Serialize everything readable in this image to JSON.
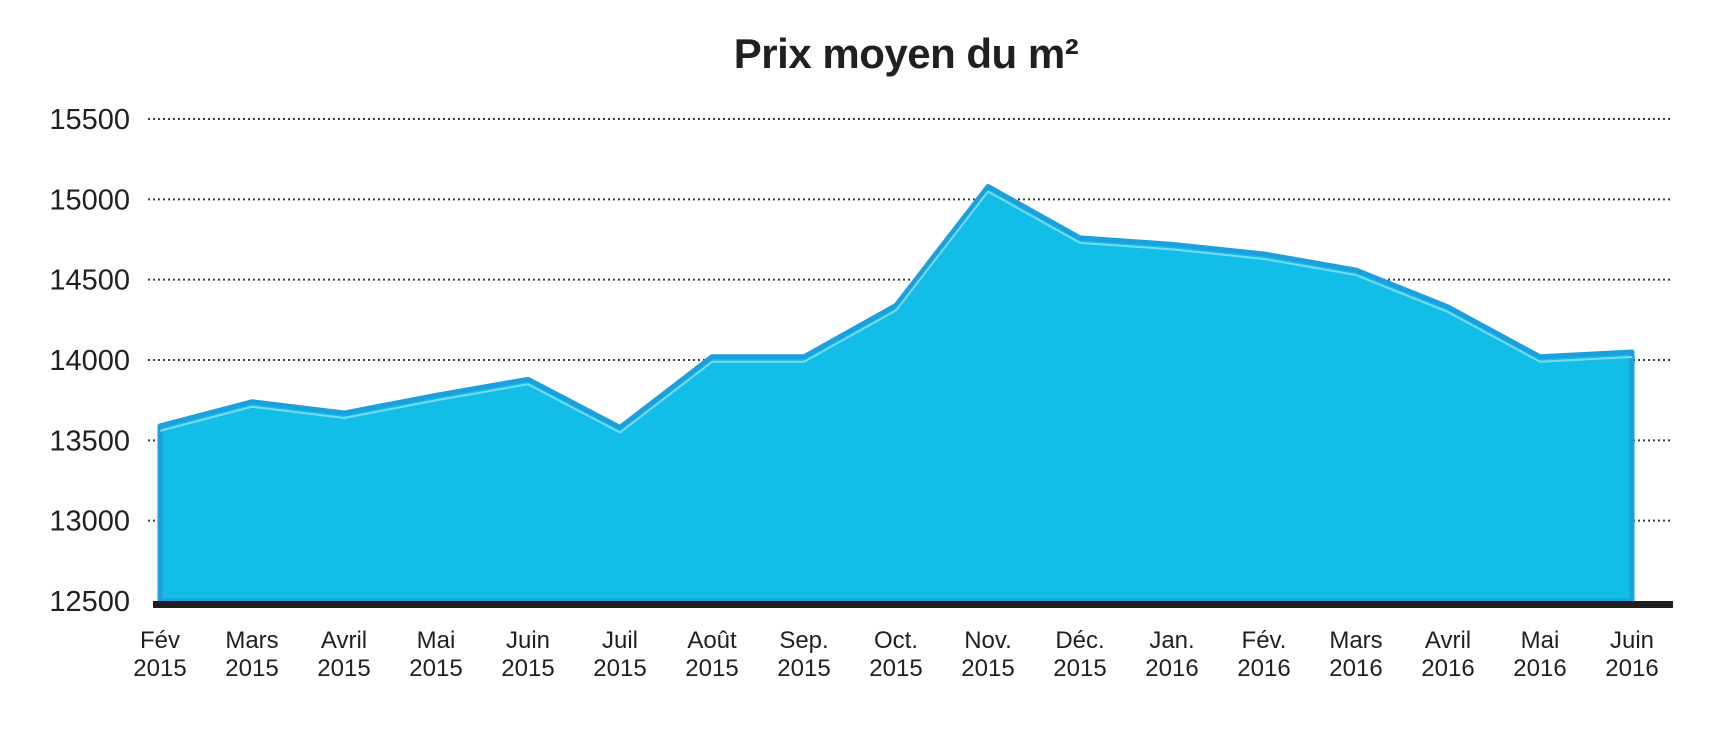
{
  "chart_data": {
    "type": "area",
    "title": "Prix moyen du m²",
    "xlabel": "",
    "ylabel": "",
    "categories": [
      {
        "month": "Fév",
        "year": "2015"
      },
      {
        "month": "Mars",
        "year": "2015"
      },
      {
        "month": "Avril",
        "year": "2015"
      },
      {
        "month": "Mai",
        "year": "2015"
      },
      {
        "month": "Juin",
        "year": "2015"
      },
      {
        "month": "Juil",
        "year": "2015"
      },
      {
        "month": "Août",
        "year": "2015"
      },
      {
        "month": "Sep.",
        "year": "2015"
      },
      {
        "month": "Oct.",
        "year": "2015"
      },
      {
        "month": "Nov.",
        "year": "2015"
      },
      {
        "month": "Déc.",
        "year": "2015"
      },
      {
        "month": "Jan.",
        "year": "2016"
      },
      {
        "month": "Fév.",
        "year": "2016"
      },
      {
        "month": "Mars",
        "year": "2016"
      },
      {
        "month": "Avril",
        "year": "2016"
      },
      {
        "month": "Mai",
        "year": "2016"
      },
      {
        "month": "Juin",
        "year": "2016"
      }
    ],
    "values": [
      13590,
      13740,
      13670,
      13780,
      13880,
      13580,
      14020,
      14020,
      14340,
      15080,
      14760,
      14720,
      14660,
      14560,
      14330,
      14020,
      14050
    ],
    "ylim": [
      12500,
      15500
    ],
    "yticks": [
      15500,
      15000,
      14500,
      14000,
      13500,
      13000,
      12500
    ],
    "grid": "dotted horizontal",
    "legend": "none",
    "colors": {
      "area_fill": "#12bde8",
      "area_stroke": "#1c9fdd",
      "area_inner_highlight": "#87e0f5",
      "axis_line": "#1f1f1f",
      "grid_line": "#3c3c3c",
      "text": "#221f1f",
      "background": "#ffffff"
    }
  }
}
